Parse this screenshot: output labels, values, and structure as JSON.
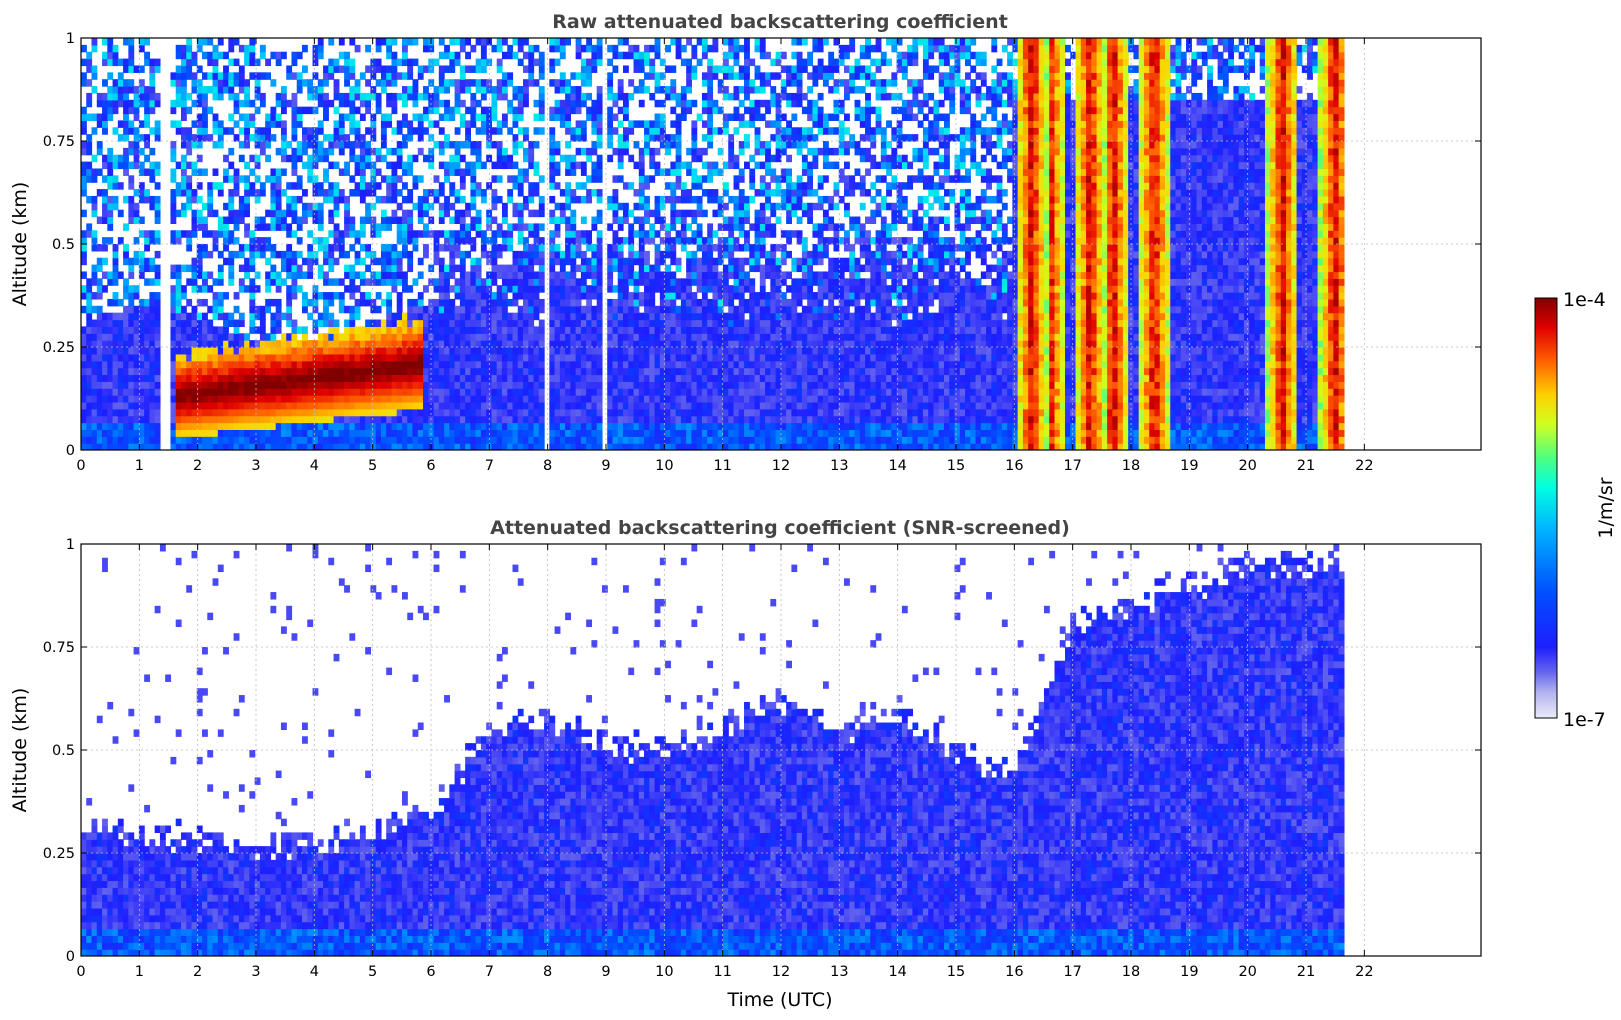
{
  "chart_data": [
    {
      "type": "heatmap",
      "title": "Raw attenuated backscattering coefficient",
      "xlabel": "",
      "ylabel": "Altitude (km)",
      "xlim": [
        0,
        24
      ],
      "ylim": [
        0,
        1
      ],
      "x_ticks": [
        0,
        1,
        2,
        3,
        4,
        5,
        6,
        7,
        8,
        9,
        10,
        11,
        12,
        13,
        14,
        15,
        16,
        17,
        18,
        19,
        20,
        21,
        22
      ],
      "y_ticks": [
        0,
        0.25,
        0.5,
        0.75,
        1
      ],
      "y_tick_labels": [
        "0",
        "0.25",
        "0.5",
        "0.75",
        "1"
      ],
      "grid": true,
      "data_end_time": 21.65,
      "features": {
        "aerosol_layer": {
          "time": [
            1.6,
            5.9
          ],
          "altitude_base": [
            0.03,
            0.1
          ],
          "altitude_top": [
            0.23,
            0.32
          ],
          "level": "high"
        },
        "saturated_columns": [
          16.3,
          16.6,
          17.3,
          17.7,
          18.4,
          20.6,
          21.5
        ],
        "data_gaps": [
          1.45,
          8.0,
          9.0
        ]
      }
    },
    {
      "type": "heatmap",
      "title": "Attenuated backscattering coefficient (SNR-screened)",
      "xlabel": "Time (UTC)",
      "ylabel": "Altitude (km)",
      "xlim": [
        0,
        24
      ],
      "ylim": [
        0,
        1
      ],
      "x_ticks": [
        0,
        1,
        2,
        3,
        4,
        5,
        6,
        7,
        8,
        9,
        10,
        11,
        12,
        13,
        14,
        15,
        16,
        17,
        18,
        19,
        20,
        21,
        22
      ],
      "y_ticks": [
        0,
        0.25,
        0.5,
        0.75,
        1
      ],
      "y_tick_labels": [
        "0",
        "0.25",
        "0.5",
        "0.75",
        "1"
      ],
      "grid": true,
      "data_end_time": 21.65,
      "features": {
        "screened_boundary_layer_top_km": [
          0.3,
          0.3,
          0.28,
          0.27,
          0.28,
          0.3,
          0.35,
          0.55,
          0.58,
          0.52,
          0.5,
          0.55,
          0.62,
          0.55,
          0.6,
          0.5,
          0.45,
          0.8,
          0.85,
          0.9,
          0.95,
          0.95
        ],
        "over_range_color": "#000000"
      }
    }
  ],
  "colorbar": {
    "label": "1/m/sr",
    "min_label": "1e-7",
    "max_label": "1e-4",
    "scale": "log",
    "colormap": [
      "#ebebfa",
      "#b4b4f0",
      "#6464ee",
      "#1e1eff",
      "#0050ff",
      "#00b4ff",
      "#00ffe0",
      "#50ff80",
      "#d0ff20",
      "#ffd000",
      "#ff6000",
      "#e00000",
      "#800000"
    ]
  },
  "colors": {
    "title": "#444444",
    "grid": "#bbbbbb",
    "background": "#ffffff"
  }
}
